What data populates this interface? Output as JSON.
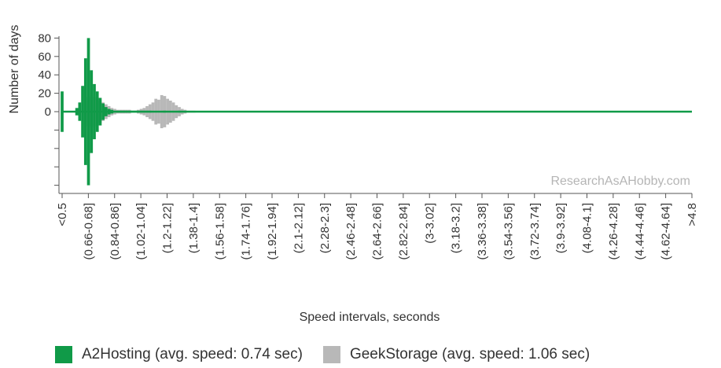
{
  "chart_data": {
    "type": "bar",
    "ylabel": "Number of days",
    "xlabel": "Speed intervals, seconds",
    "watermark": "ResearchAsAHobby.com",
    "y_ticks": [
      "80",
      "60",
      "40",
      "20",
      "0"
    ],
    "ylim": [
      -80,
      80
    ],
    "layout": "back-to-back (mirrored around 0)",
    "categories": [
      "<0.5",
      "(0.66-0.68]",
      "(0.84-0.86]",
      "(1.02-1.04]",
      "(1.2-1.22]",
      "(1.38-1.4]",
      "(1.56-1.58]",
      "(1.74-1.76]",
      "(1.92-1.94]",
      "(2.1-2.12]",
      "(2.28-2.3]",
      "(2.46-2.48]",
      "(2.64-2.66]",
      "(2.82-2.84]",
      "(3-3.02]",
      "(3.18-3.2]",
      "(3.36-3.38]",
      "(3.54-3.56]",
      "(3.72-3.74]",
      "(3.9-3.92]",
      "(4.08-4.1]",
      "(4.26-4.28]",
      "(4.44-4.46]",
      "(4.62-4.64]",
      ">4.8"
    ],
    "x_start": 0.5,
    "x_end": 4.8,
    "bin_width": 0.02,
    "series": [
      {
        "name": "A2Hosting (avg. speed: 0.74 sec)",
        "color": "#109a48",
        "values": [
          [
            0.5,
            22
          ],
          [
            0.6,
            4
          ],
          [
            0.62,
            10
          ],
          [
            0.64,
            28
          ],
          [
            0.66,
            58
          ],
          [
            0.68,
            80
          ],
          [
            0.7,
            45
          ],
          [
            0.72,
            30
          ],
          [
            0.74,
            22
          ],
          [
            0.76,
            15
          ],
          [
            0.78,
            9
          ],
          [
            0.8,
            5
          ],
          [
            0.82,
            3
          ],
          [
            0.84,
            2
          ],
          [
            0.86,
            1
          ],
          [
            0.88,
            1
          ],
          [
            0.9,
            1
          ],
          [
            0.92,
            1
          ],
          [
            0.94,
            1
          ],
          [
            0.96,
            1
          ],
          [
            0.98,
            1
          ],
          [
            1.0,
            1
          ],
          [
            1.02,
            1
          ],
          [
            1.04,
            1
          ],
          [
            1.06,
            1
          ],
          [
            1.08,
            1
          ],
          [
            1.1,
            1
          ],
          [
            1.2,
            1
          ],
          [
            1.3,
            1
          ]
        ]
      },
      {
        "name": "GeekStorage (avg. speed: 1.06 sec)",
        "color": "#b8b8b8",
        "values": [
          [
            0.66,
            12
          ],
          [
            0.68,
            16
          ],
          [
            0.7,
            18
          ],
          [
            0.72,
            16
          ],
          [
            0.74,
            14
          ],
          [
            0.76,
            12
          ],
          [
            0.78,
            10
          ],
          [
            0.8,
            8
          ],
          [
            0.82,
            6
          ],
          [
            0.84,
            4
          ],
          [
            0.86,
            3
          ],
          [
            0.88,
            2
          ],
          [
            0.9,
            2
          ],
          [
            0.92,
            2
          ],
          [
            0.94,
            2
          ],
          [
            0.96,
            2
          ],
          [
            0.98,
            1
          ],
          [
            1.0,
            1
          ],
          [
            1.02,
            2
          ],
          [
            1.04,
            3
          ],
          [
            1.06,
            4
          ],
          [
            1.08,
            6
          ],
          [
            1.1,
            8
          ],
          [
            1.12,
            10
          ],
          [
            1.14,
            14
          ],
          [
            1.16,
            13
          ],
          [
            1.18,
            18
          ],
          [
            1.2,
            17
          ],
          [
            1.22,
            14
          ],
          [
            1.24,
            12
          ],
          [
            1.26,
            10
          ],
          [
            1.28,
            7
          ],
          [
            1.3,
            5
          ],
          [
            1.32,
            3
          ],
          [
            1.34,
            2
          ],
          [
            1.36,
            1
          ],
          [
            1.38,
            1
          ],
          [
            1.4,
            1
          ]
        ]
      }
    ]
  }
}
